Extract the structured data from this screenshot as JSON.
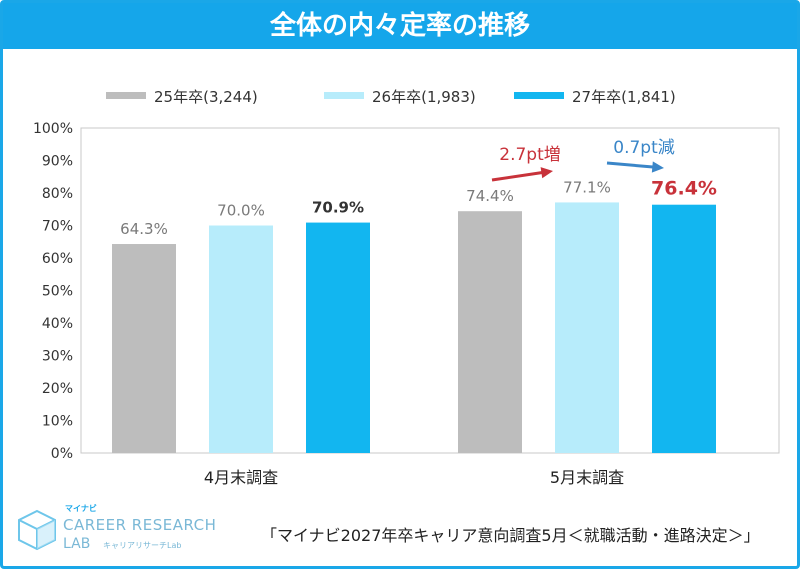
{
  "header": {
    "title": "全体の内々定率の推移"
  },
  "chart_data": {
    "type": "bar",
    "categories": [
      "4月末調査",
      "5月末調査"
    ],
    "series": [
      {
        "name": "25年卒(3,244)",
        "color": "#bdbdbd",
        "values": [
          64.3,
          74.4
        ],
        "labels": [
          "64.3%",
          "74.4%"
        ]
      },
      {
        "name": "26年卒(1,983)",
        "color": "#b7ecfb",
        "values": [
          70.0,
          77.1
        ],
        "labels": [
          "70.0%",
          "77.1%"
        ]
      },
      {
        "name": "27年卒(1,841)",
        "color": "#12b6f0",
        "values": [
          70.9,
          76.4
        ],
        "labels": [
          "70.9%",
          "76.4%"
        ]
      }
    ],
    "yticks": [
      "0%",
      "10%",
      "20%",
      "30%",
      "40%",
      "50%",
      "60%",
      "70%",
      "80%",
      "90%",
      "100%"
    ],
    "ylim": [
      0,
      100
    ],
    "legend_position": "top",
    "annotations": [
      {
        "text": "2.7pt増",
        "color": "#c8323a"
      },
      {
        "text": "0.7pt減",
        "color": "#3a86c8"
      }
    ]
  },
  "logo": {
    "small_text": "マイナビ",
    "main_text": "CAREER RESEARCH",
    "sub_text": "LAB",
    "sub_text2": "キャリアリサーチLab"
  },
  "source": {
    "text": "「マイナビ2027年卒キャリア意向調査5月＜就職活動・進路決定＞」"
  }
}
